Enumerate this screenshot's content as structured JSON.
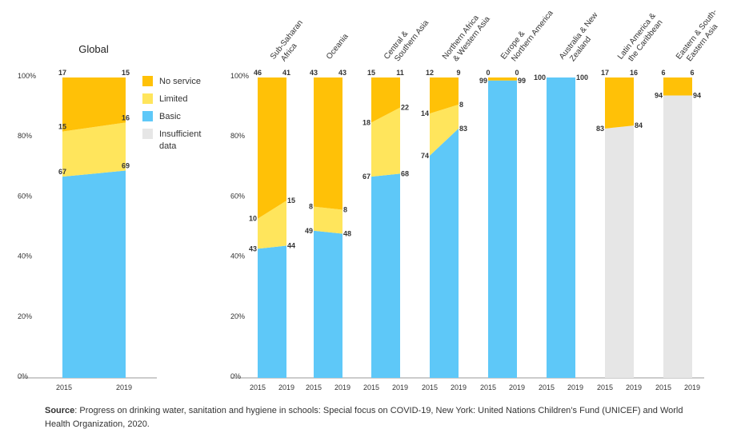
{
  "chart_data": {
    "type": "bar",
    "stacked": true,
    "normalized_percent": true,
    "yticks": [
      "0%",
      "20%",
      "40%",
      "60%",
      "80%",
      "100%"
    ],
    "ylim": [
      0,
      100
    ],
    "colors": {
      "No service": "#ffc107",
      "Limited": "#ffe55c",
      "Basic": "#5ec8f8",
      "Insufficient data": "#e6e6e6"
    },
    "legend": [
      "No service",
      "Limited",
      "Basic",
      "Insufficient data"
    ],
    "global": {
      "title": "Global",
      "x": [
        "2015",
        "2019"
      ],
      "basic": [
        67,
        69
      ],
      "limited": [
        15,
        16
      ],
      "no_service": [
        17,
        15
      ]
    },
    "regions": [
      {
        "name": "Sub-Saharan Africa",
        "x": [
          "2015",
          "2019"
        ],
        "basic": [
          43,
          44
        ],
        "limited": [
          10,
          15
        ],
        "no_service": [
          46,
          41
        ],
        "insufficient": null
      },
      {
        "name": "Oceania",
        "x": [
          "2015",
          "2019"
        ],
        "basic": [
          49,
          48
        ],
        "limited": [
          8,
          8
        ],
        "no_service": [
          43,
          43
        ],
        "insufficient": null
      },
      {
        "name": "Central & Southern Asia",
        "x": [
          "2015",
          "2019"
        ],
        "basic": [
          67,
          68
        ],
        "limited": [
          18,
          22
        ],
        "no_service": [
          15,
          11
        ],
        "insufficient": null
      },
      {
        "name": "Northern Africa & Western Asia",
        "x": [
          "2015",
          "2019"
        ],
        "basic": [
          74,
          83
        ],
        "limited": [
          14,
          8
        ],
        "no_service": [
          12,
          9
        ],
        "insufficient": null
      },
      {
        "name": "Europe & Northern America",
        "x": [
          "2015",
          "2019"
        ],
        "basic": [
          99,
          99
        ],
        "limited": null,
        "no_service": [
          0,
          0
        ],
        "insufficient": null
      },
      {
        "name": "Australia & New Zealand",
        "x": [
          "2015",
          "2019"
        ],
        "basic": [
          100,
          100
        ],
        "limited": null,
        "no_service": null,
        "insufficient": null
      },
      {
        "name": "Latin America & the Caribbean",
        "x": [
          "2015",
          "2019"
        ],
        "basic": null,
        "limited": null,
        "no_service": [
          17,
          16
        ],
        "insufficient": [
          83,
          84
        ]
      },
      {
        "name": "Eastern & South-Eastern Asia",
        "x": [
          "2015",
          "2019"
        ],
        "basic": null,
        "limited": null,
        "no_service": [
          6,
          6
        ],
        "insufficient": [
          94,
          94
        ]
      }
    ],
    "region_labels": [
      [
        "Sub-Saharan",
        "Africa"
      ],
      [
        "Oceania"
      ],
      [
        "Central &",
        "Southern Asia"
      ],
      [
        "Northern Africa",
        "& Western Asia"
      ],
      [
        "Europe &",
        "Northern America"
      ],
      [
        "Australia & New",
        "Zealand"
      ],
      [
        "Latin America &",
        "the Caribbean"
      ],
      [
        "Eastern & South-",
        "Eastern Asia"
      ]
    ]
  },
  "source": {
    "label": "Source",
    "text": ": Progress on drinking water, sanitation and hygiene in schools: Special focus on COVID-19, New York: United Nations Children’s Fund (UNICEF) and World Health Organization, 2020."
  }
}
